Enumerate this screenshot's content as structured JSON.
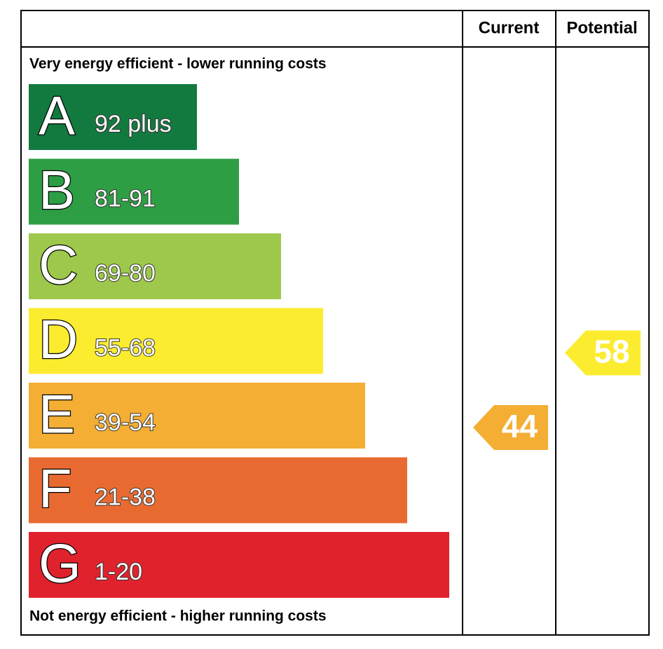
{
  "chart_data": {
    "type": "epc",
    "columns": [
      "Current",
      "Potential"
    ],
    "top_label": "Very energy efficient - lower running costs",
    "bottom_label": "Not energy efficient - higher running costs",
    "bands": [
      {
        "letter": "A",
        "range": "92 plus",
        "color": "#137a3f"
      },
      {
        "letter": "B",
        "range": "81-91",
        "color": "#2e9e44"
      },
      {
        "letter": "C",
        "range": "69-80",
        "color": "#9dc84b"
      },
      {
        "letter": "D",
        "range": "55-68",
        "color": "#fcec30"
      },
      {
        "letter": "E",
        "range": "39-54",
        "color": "#f4ae34"
      },
      {
        "letter": "F",
        "range": "21-38",
        "color": "#e96a31"
      },
      {
        "letter": "G",
        "range": "1-20",
        "color": "#e0222d"
      }
    ],
    "current": 44,
    "potential": 58
  }
}
